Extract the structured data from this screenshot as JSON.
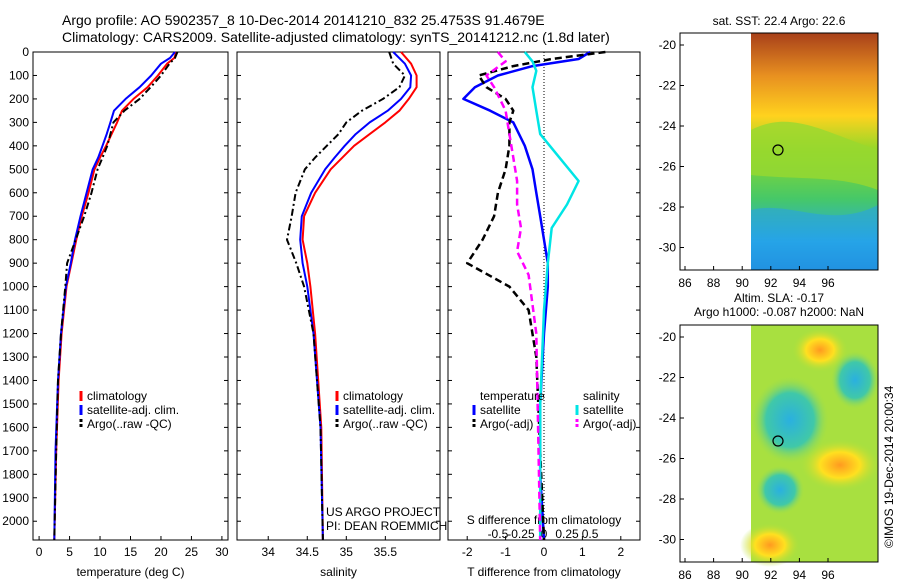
{
  "header": {
    "title_line1": "Argo profile: AO 5902357_8 10-Dec-2014 20141210_832 25.4753S 91.4679E",
    "title_line2": "Climatology: CARS2009. Satellite-adjusted climatology: synTS_20141212.nc (1.8d later)"
  },
  "colors": {
    "climatology": "#ff0000",
    "satellite": "#0000ff",
    "argo": "#000000",
    "salinity_sat": "#00e5e5",
    "salinity_argo": "#ff00ff"
  },
  "depth_ticks": [
    "0",
    "100",
    "200",
    "300",
    "400",
    "500",
    "600",
    "700",
    "800",
    "900",
    "1000",
    "1100",
    "1200",
    "1300",
    "1400",
    "1500",
    "1600",
    "1700",
    "1800",
    "1900",
    "2000"
  ],
  "chart_data": [
    {
      "id": "temperature",
      "type": "line",
      "xlabel": "temperature (deg C)",
      "ylabel": "",
      "xlim": [
        -1,
        31
      ],
      "ylim": [
        2080,
        0
      ],
      "xticks": [
        "0",
        "5",
        "10",
        "15",
        "20",
        "25",
        "30"
      ],
      "legend": [
        "climatology",
        "satellite-adj. clim.",
        "Argo(..raw -QC)"
      ],
      "series": [
        {
          "name": "climatology",
          "x": [
            22.5,
            22.2,
            21,
            19.5,
            17.8,
            15.5,
            13.6,
            12.8,
            11.9,
            11,
            10,
            9.1,
            8.1,
            7,
            6.1,
            5.3,
            4.5,
            3.7,
            3.2,
            2.8,
            2.5
          ],
          "y": [
            0,
            25,
            50,
            100,
            150,
            200,
            250,
            300,
            350,
            400,
            450,
            500,
            600,
            700,
            800,
            900,
            1000,
            1200,
            1400,
            1700,
            2080
          ]
        },
        {
          "name": "satellite-adj. clim.",
          "x": [
            22.3,
            21.5,
            20,
            18.4,
            16.5,
            14.2,
            12.3,
            11.7,
            11.1,
            10.4,
            9.7,
            8.8,
            7.8,
            6.8,
            5.9,
            5.2,
            4.4,
            3.6,
            3.1,
            2.7,
            2.5
          ],
          "y": [
            0,
            25,
            50,
            100,
            150,
            200,
            250,
            300,
            350,
            400,
            450,
            500,
            600,
            700,
            800,
            900,
            1000,
            1200,
            1400,
            1700,
            2080
          ]
        },
        {
          "name": "Argo(..raw -QC)",
          "x": [
            22.7,
            22.3,
            21.4,
            20,
            18.3,
            16.5,
            14,
            12.2,
            11.7,
            11.2,
            10.4,
            9.6,
            8.6,
            7.4,
            6,
            4.6,
            4.3,
            3.6,
            3.1,
            2.8,
            2.5
          ],
          "y": [
            0,
            25,
            50,
            100,
            150,
            200,
            250,
            300,
            350,
            400,
            450,
            500,
            600,
            700,
            800,
            900,
            1000,
            1200,
            1400,
            1700,
            2080
          ]
        }
      ]
    },
    {
      "id": "salinity",
      "type": "line",
      "xlabel": "salinity",
      "ylabel": "",
      "xlim": [
        33.6,
        36.2
      ],
      "ylim": [
        2080,
        0
      ],
      "xticks": [
        "34",
        "34.5",
        "35",
        "35.5"
      ],
      "legend": [
        "climatology",
        "satellite-adj. clim.",
        "Argo(..raw -QC)"
      ],
      "series": [
        {
          "name": "climatology",
          "x": [
            35.7,
            35.83,
            35.9,
            35.9,
            35.8,
            35.68,
            35.5,
            35.3,
            35.1,
            34.95,
            34.8,
            34.6,
            34.46,
            34.44,
            34.5,
            34.54,
            34.6,
            34.68,
            34.7
          ],
          "y": [
            0,
            50,
            100,
            150,
            200,
            250,
            300,
            350,
            400,
            450,
            500,
            600,
            700,
            800,
            900,
            1000,
            1200,
            1600,
            2080
          ]
        },
        {
          "name": "satellite-adj. clim.",
          "x": [
            35.6,
            35.75,
            35.83,
            35.82,
            35.7,
            35.53,
            35.3,
            35.12,
            34.98,
            34.85,
            34.73,
            34.55,
            34.43,
            34.41,
            34.44,
            34.5,
            34.58,
            34.67,
            34.7
          ],
          "y": [
            0,
            50,
            100,
            150,
            200,
            250,
            300,
            350,
            400,
            450,
            500,
            600,
            700,
            800,
            900,
            1000,
            1200,
            1600,
            2080
          ]
        },
        {
          "name": "Argo(..raw -QC)",
          "x": [
            35.55,
            35.6,
            35.75,
            35.68,
            35.47,
            35.2,
            35.0,
            34.9,
            34.75,
            34.6,
            34.47,
            34.35,
            34.3,
            34.24,
            34.36,
            34.46,
            34.58,
            34.67,
            34.7
          ],
          "y": [
            0,
            50,
            100,
            150,
            200,
            250,
            300,
            350,
            400,
            450,
            500,
            600,
            700,
            800,
            900,
            1000,
            1200,
            1600,
            2080
          ]
        }
      ]
    },
    {
      "id": "difference",
      "type": "line",
      "xlabel": "T difference from climatology",
      "xlabel_top": "S difference from climatology",
      "xlim": [
        -2.5,
        2.5
      ],
      "ylim": [
        2080,
        0
      ],
      "xticks": [
        "-2",
        "-1",
        "0",
        "1",
        "2"
      ],
      "xticks_s": [
        "-0.5",
        "-0.25",
        "0",
        "0.25",
        "0.5"
      ],
      "legend_headers": [
        "temperature",
        "salinity"
      ],
      "legend": [
        "satellite",
        "Argo(-adj)",
        "satellite",
        "Argo(-adj)"
      ],
      "series": [
        {
          "name": "satellite",
          "group": "temperature",
          "x": [
            1.2,
            0.9,
            -0.3,
            -1.2,
            -1.8,
            -2.1,
            -1.4,
            -0.8,
            -0.5,
            -0.3,
            -0.2,
            -0.1,
            0,
            0.1,
            0.1,
            0,
            -0.1,
            -0.1,
            0
          ],
          "y": [
            0,
            30,
            60,
            100,
            150,
            200,
            250,
            300,
            400,
            500,
            600,
            700,
            800,
            900,
            1000,
            1200,
            1500,
            1800,
            2080
          ]
        },
        {
          "name": "Argo(-adj)",
          "group": "temperature",
          "x": [
            1.6,
            0.2,
            -0.8,
            -1.7,
            -1.5,
            -1.0,
            -0.8,
            -0.9,
            -0.9,
            -1.0,
            -1.2,
            -1.3,
            -1.6,
            -2.0,
            -0.9,
            -0.4,
            -0.2,
            -0.1,
            0
          ],
          "y": [
            0,
            30,
            60,
            100,
            150,
            200,
            250,
            300,
            400,
            500,
            600,
            700,
            800,
            900,
            1000,
            1100,
            1300,
            1700,
            2080
          ]
        },
        {
          "name": "satellite",
          "group": "salinity",
          "x": [
            -0.5,
            -0.3,
            -0.2,
            -0.3,
            -0.2,
            -0.1,
            0.4,
            0.9,
            0.6,
            0.2,
            0.1,
            0,
            -0.1,
            -0.1
          ],
          "y": [
            0,
            40,
            80,
            150,
            250,
            350,
            450,
            550,
            650,
            750,
            900,
            1100,
            1500,
            2080
          ]
        },
        {
          "name": "Argo(-adj)",
          "group": "salinity",
          "x": [
            -1.2,
            -1.0,
            -1.5,
            -1.3,
            -1.0,
            -0.9,
            -0.8,
            -0.7,
            -0.7,
            -0.6,
            -0.7,
            -0.4,
            -0.2,
            -0.1
          ],
          "y": [
            0,
            40,
            100,
            150,
            250,
            350,
            450,
            550,
            650,
            750,
            850,
            950,
            1200,
            2080
          ]
        }
      ]
    },
    {
      "id": "sst_map",
      "type": "heatmap",
      "title": "sat. SST: 22.4  Argo: 22.6",
      "xticks": [
        "86",
        "88",
        "90",
        "92",
        "94",
        "96"
      ],
      "yticks": [
        "-20",
        "-22",
        "-24",
        "-26",
        "-28",
        "-30"
      ]
    },
    {
      "id": "sla_map",
      "type": "heatmap",
      "title": "Altim. SLA: -0.17",
      "subtitle": "Argo h1000: -0.087 h2000: NaN",
      "xticks": [
        "86",
        "88",
        "90",
        "92",
        "94",
        "96"
      ],
      "yticks": [
        "-20",
        "-22",
        "-24",
        "-26",
        "-28",
        "-30"
      ]
    }
  ],
  "credits": {
    "project_line1": "US ARGO PROJECT",
    "project_line2": "PI: DEAN ROEMMICH",
    "imos_stamp": "©IMOS 19-Dec-2014 20:00:34"
  }
}
